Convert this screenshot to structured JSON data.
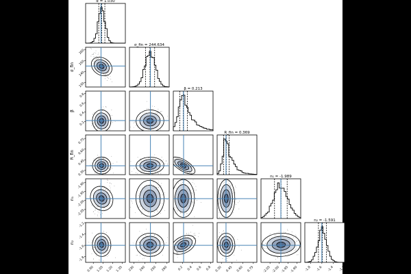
{
  "figure": {
    "background": "#ffffff",
    "page_background": "#000000",
    "line_color": "#000000",
    "truth_color": "#4682b4",
    "density_fill": "#4a5f80"
  },
  "chart_data": {
    "type": "corner",
    "params": [
      {
        "key": "alpha",
        "label": "α",
        "title": "α = 1.030",
        "median": 1.03,
        "lo": 0.985,
        "hi": 1.08,
        "truth": 1.02,
        "range": [
          0.8,
          1.3
        ],
        "ticks": [
          "0.90",
          "1.05",
          "1.20",
          "1.35"
        ],
        "tick_values": [
          0.9,
          1.05,
          1.2,
          1.35
        ],
        "ax_lim": [
          0.78,
          1.4
        ]
      },
      {
        "key": "sigma",
        "label": "σ_fin",
        "title": "σ_fin = 244.634",
        "median": 244.6,
        "lo": 240.5,
        "hi": 248.8,
        "truth": 245.0,
        "range": [
          228,
          262
        ],
        "ticks": [
          "230",
          "240",
          "250",
          "260"
        ],
        "tick_values": [
          230,
          240,
          250,
          260
        ],
        "ax_lim": [
          226,
          262
        ]
      },
      {
        "key": "beta",
        "label": "β",
        "title": "β = 0.213",
        "median": 0.213,
        "lo": 0.14,
        "hi": 0.3,
        "truth": 0.22,
        "range": [
          0.0,
          0.8
        ],
        "ticks": [
          "0.2",
          "0.4",
          "0.6",
          "0.8"
        ],
        "tick_values": [
          0.2,
          0.4,
          0.6,
          0.8
        ],
        "ax_lim": [
          0.0,
          0.85
        ]
      },
      {
        "key": "rfin",
        "label": "R_fin",
        "title": "R_fin = 0.369",
        "median": 0.369,
        "lo": 0.33,
        "hi": 0.41,
        "truth": 0.365,
        "range": [
          0.25,
          0.8
        ],
        "ticks": [
          "0.30",
          "0.45",
          "0.60",
          "0.75"
        ],
        "tick_values": [
          0.3,
          0.45,
          0.6,
          0.75
        ],
        "ax_lim": [
          0.24,
          0.8
        ]
      },
      {
        "key": "n1",
        "label": "n₁",
        "title": "n₁ = -1.989",
        "median": -1.989,
        "lo": -2.025,
        "hi": -1.955,
        "truth": -1.99,
        "range": [
          -2.1,
          -1.88
        ],
        "ticks": [
          "-2.05",
          "-2.00",
          "-1.95",
          "-1.90"
        ],
        "tick_values": [
          -2.05,
          -2.0,
          -1.95,
          -1.9
        ],
        "ax_lim": [
          -2.1,
          -1.88
        ]
      },
      {
        "key": "n2",
        "label": "n₂",
        "title": "n₂ = -1.591",
        "median": -1.591,
        "lo": -1.66,
        "hi": -1.52,
        "truth": -1.6,
        "range": [
          -1.9,
          -1.2
        ],
        "ticks": [
          "-1.8",
          "-1.6",
          "-1.4",
          "-1.2"
        ],
        "tick_values": [
          -1.8,
          -1.6,
          -1.4,
          -1.2
        ],
        "ax_lim": [
          -1.9,
          -1.2
        ]
      }
    ],
    "correlations": [
      [
        0,
        1,
        -0.85
      ],
      [
        0,
        2,
        0.05
      ],
      [
        1,
        2,
        0.05
      ],
      [
        0,
        3,
        0.0
      ],
      [
        1,
        3,
        0.05
      ],
      [
        2,
        3,
        -0.8
      ],
      [
        0,
        4,
        0.75
      ],
      [
        1,
        4,
        0.1
      ],
      [
        2,
        4,
        0.0
      ],
      [
        3,
        4,
        0.0
      ],
      [
        0,
        5,
        0.05
      ],
      [
        1,
        5,
        0.05
      ],
      [
        2,
        5,
        0.7
      ],
      [
        3,
        5,
        0.05
      ],
      [
        4,
        5,
        0.05
      ]
    ],
    "grid": false,
    "legend": "none"
  }
}
